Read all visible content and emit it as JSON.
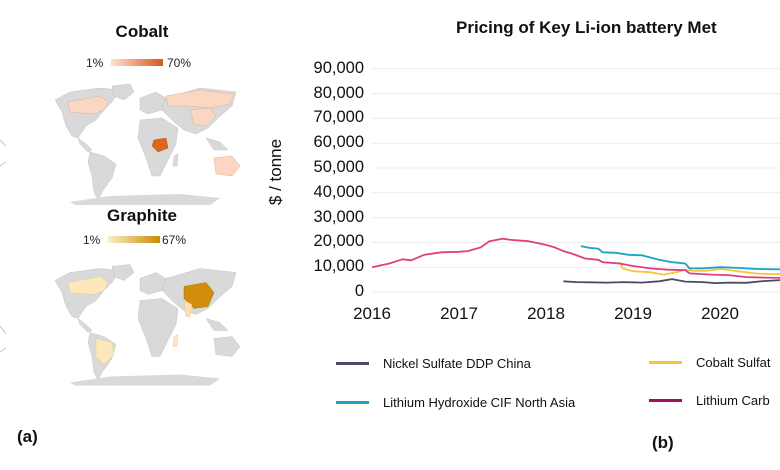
{
  "panel_a": {
    "label": "(a)",
    "maps": [
      {
        "title": "Cobalt",
        "scale_min": "1%",
        "scale_max": "70%",
        "color_low": "#fde2d2",
        "color_high": "#d9571a",
        "highlighted": [
          {
            "region": "DR Congo",
            "level": "high",
            "color": "#e0661e"
          },
          {
            "region": "Russia",
            "level": "low",
            "color": "#fbd6c2"
          },
          {
            "region": "Canada",
            "level": "low",
            "color": "#fbd6c2"
          },
          {
            "region": "China",
            "level": "low",
            "color": "#fbd6c2"
          },
          {
            "region": "Australia",
            "level": "low",
            "color": "#fbd6c2"
          }
        ]
      },
      {
        "title": "Graphite",
        "scale_min": "1%",
        "scale_max": "67%",
        "color_low": "#fdefc8",
        "color_high": "#c98a06",
        "highlighted": [
          {
            "region": "China",
            "level": "high",
            "color": "#d18d0b"
          },
          {
            "region": "Canada",
            "level": "low",
            "color": "#fde8bd"
          },
          {
            "region": "Brazil",
            "level": "low",
            "color": "#fde8bd"
          },
          {
            "region": "India",
            "level": "low",
            "color": "#fde0ad"
          },
          {
            "region": "Madagascar",
            "level": "low",
            "color": "#fde8bd"
          }
        ]
      }
    ],
    "land_color": "#d9d9d9"
  },
  "panel_b": {
    "label": "(b)"
  },
  "chart_data": {
    "type": "line",
    "title": "Pricing of Key Li-ion battery Met",
    "xlabel": "",
    "ylabel": "$ / tonne",
    "xlim": [
      2016,
      2020.7
    ],
    "ylim": [
      0,
      90000
    ],
    "yticks": [
      "0",
      "10,000",
      "20,000",
      "30,000",
      "40,000",
      "50,000",
      "60,000",
      "70,000",
      "80,000",
      "90,000"
    ],
    "ytick_values": [
      0,
      10000,
      20000,
      30000,
      40000,
      50000,
      60000,
      70000,
      80000,
      90000
    ],
    "xticks": [
      "2016",
      "2017",
      "2018",
      "2019",
      "2020"
    ],
    "xtick_values": [
      2016,
      2017,
      2018,
      2019,
      2020
    ],
    "grid": true,
    "legend_position": "bottom",
    "series": [
      {
        "name": "Nickel Sulfate DDP China",
        "color": "#4a4a68",
        "x": [
          2018.2,
          2018.35,
          2018.5,
          2018.7,
          2018.9,
          2019.1,
          2019.3,
          2019.45,
          2019.6,
          2019.8,
          2019.95,
          2020.1,
          2020.3,
          2020.5,
          2020.7
        ],
        "y": [
          4300,
          4000,
          3900,
          3800,
          4000,
          3800,
          4300,
          5200,
          4200,
          4000,
          3600,
          3800,
          3700,
          4400,
          4800
        ]
      },
      {
        "name": "Cobalt Sulfat",
        "color": "#f5c540",
        "x": [
          2018.85,
          2018.88,
          2019.0,
          2019.2,
          2019.35,
          2019.5,
          2019.6,
          2019.7,
          2019.85,
          2020.0,
          2020.2,
          2020.4,
          2020.55,
          2020.7
        ],
        "y": [
          12000,
          9500,
          8400,
          8000,
          7000,
          8000,
          9000,
          8500,
          8600,
          9300,
          8400,
          7500,
          7200,
          7300
        ]
      },
      {
        "name": "Lithium Hydroxide CIF North Asia",
        "color": "#1aa3c4",
        "x": [
          2018.4,
          2018.5,
          2018.6,
          2018.65,
          2018.8,
          2018.95,
          2019.1,
          2019.3,
          2019.45,
          2019.6,
          2019.65,
          2019.8,
          2020.0,
          2020.2,
          2020.4,
          2020.7
        ],
        "y": [
          18500,
          17800,
          17500,
          16000,
          15800,
          15000,
          14800,
          13000,
          12000,
          11500,
          9500,
          9500,
          10000,
          9700,
          9300,
          9100
        ]
      },
      {
        "name": "Lithium Carb",
        "color": "#e0407a",
        "x": [
          2016.0,
          2016.2,
          2016.35,
          2016.45,
          2016.6,
          2016.8,
          2017.0,
          2017.1,
          2017.25,
          2017.35,
          2017.5,
          2017.6,
          2017.8,
          2018.0,
          2018.1,
          2018.2,
          2018.3,
          2018.45,
          2018.6,
          2018.65,
          2018.85,
          2019.0,
          2019.2,
          2019.4,
          2019.6,
          2019.65,
          2019.9,
          2020.1,
          2020.3,
          2020.5,
          2020.7
        ],
        "y": [
          10000,
          11500,
          13200,
          12800,
          15000,
          16000,
          16200,
          16500,
          18000,
          20500,
          21500,
          21000,
          20500,
          19000,
          18000,
          16500,
          15500,
          13500,
          13000,
          12000,
          11500,
          10500,
          9500,
          9000,
          8800,
          7500,
          7000,
          6800,
          6000,
          5800,
          5700
        ]
      }
    ],
    "legend": [
      {
        "name": "Nickel Sulfate DDP China",
        "color": "#4a4a68"
      },
      {
        "name": "Cobalt Sulfat",
        "color": "#f5c540"
      },
      {
        "name": "Lithium Hydroxide CIF North Asia",
        "color": "#1aa3c4"
      },
      {
        "name": "Lithium Carb",
        "color": "#a0105a"
      }
    ]
  }
}
